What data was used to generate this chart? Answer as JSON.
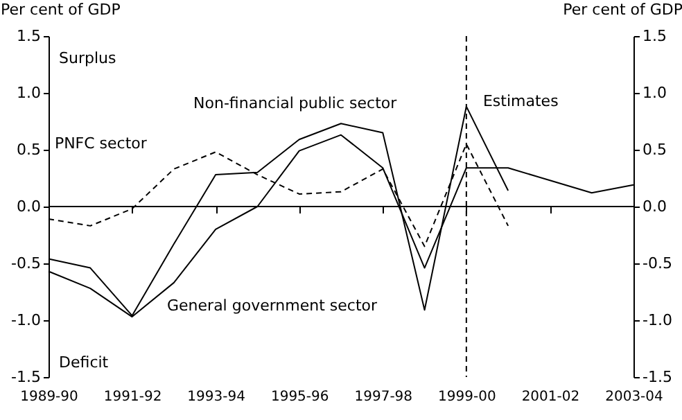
{
  "chart_data": {
    "type": "line",
    "categories": [
      "1989-90",
      null,
      "1991-92",
      null,
      "1993-94",
      null,
      "1995-96",
      null,
      "1997-98",
      null,
      "1999-00",
      null,
      "2001-02",
      null,
      "2003-04"
    ],
    "series": [
      {
        "name": "Non-financial public sector",
        "color": "#000000",
        "line_style": "solid",
        "values": [
          -0.46,
          -0.54,
          -0.96,
          -0.33,
          0.28,
          0.3,
          0.59,
          0.73,
          0.65,
          -0.91,
          0.88,
          0.14,
          null,
          null,
          null
        ]
      },
      {
        "name": "General government sector",
        "color": "#000000",
        "line_style": "solid",
        "values": [
          -0.57,
          -0.72,
          -0.97,
          -0.67,
          -0.2,
          0.0,
          0.49,
          0.63,
          0.34,
          -0.54,
          0.34,
          0.34,
          0.23,
          0.12,
          0.19
        ]
      },
      {
        "name": "PNFC sector",
        "color": "#000000",
        "line_style": "dashed",
        "values": [
          -0.11,
          -0.17,
          -0.02,
          0.33,
          0.48,
          0.28,
          0.11,
          0.13,
          0.33,
          -0.35,
          0.55,
          -0.17,
          null,
          null,
          null
        ]
      }
    ],
    "ylabel": "Per cent of GDP",
    "y2label": "Per cent of GDP",
    "ylim": [
      -1.5,
      1.5
    ],
    "yticks": [
      -1.5,
      {
        "value": -1,
        "label": "-1.0"
      },
      -0.5,
      {
        "value": 0,
        "label": "0.0"
      },
      0.5,
      {
        "value": 1,
        "label": "1.0"
      },
      1.5
    ],
    "y2lim": [
      -1.5,
      1.5
    ],
    "y2ticks": [
      -1.5,
      {
        "value": -1,
        "label": "-1.0"
      },
      -0.5,
      {
        "value": 0,
        "label": "0.0"
      },
      0.5,
      {
        "value": 1,
        "label": "1.0"
      },
      1.5
    ],
    "ref_lines": [
      {
        "axis": "x",
        "value": "1999-00",
        "line_style": "dashed",
        "color": "#000000"
      }
    ],
    "annotations": [
      "Surplus",
      "Deficit",
      "Estimates"
    ],
    "grid": false,
    "legend": false,
    "marker": "none"
  }
}
